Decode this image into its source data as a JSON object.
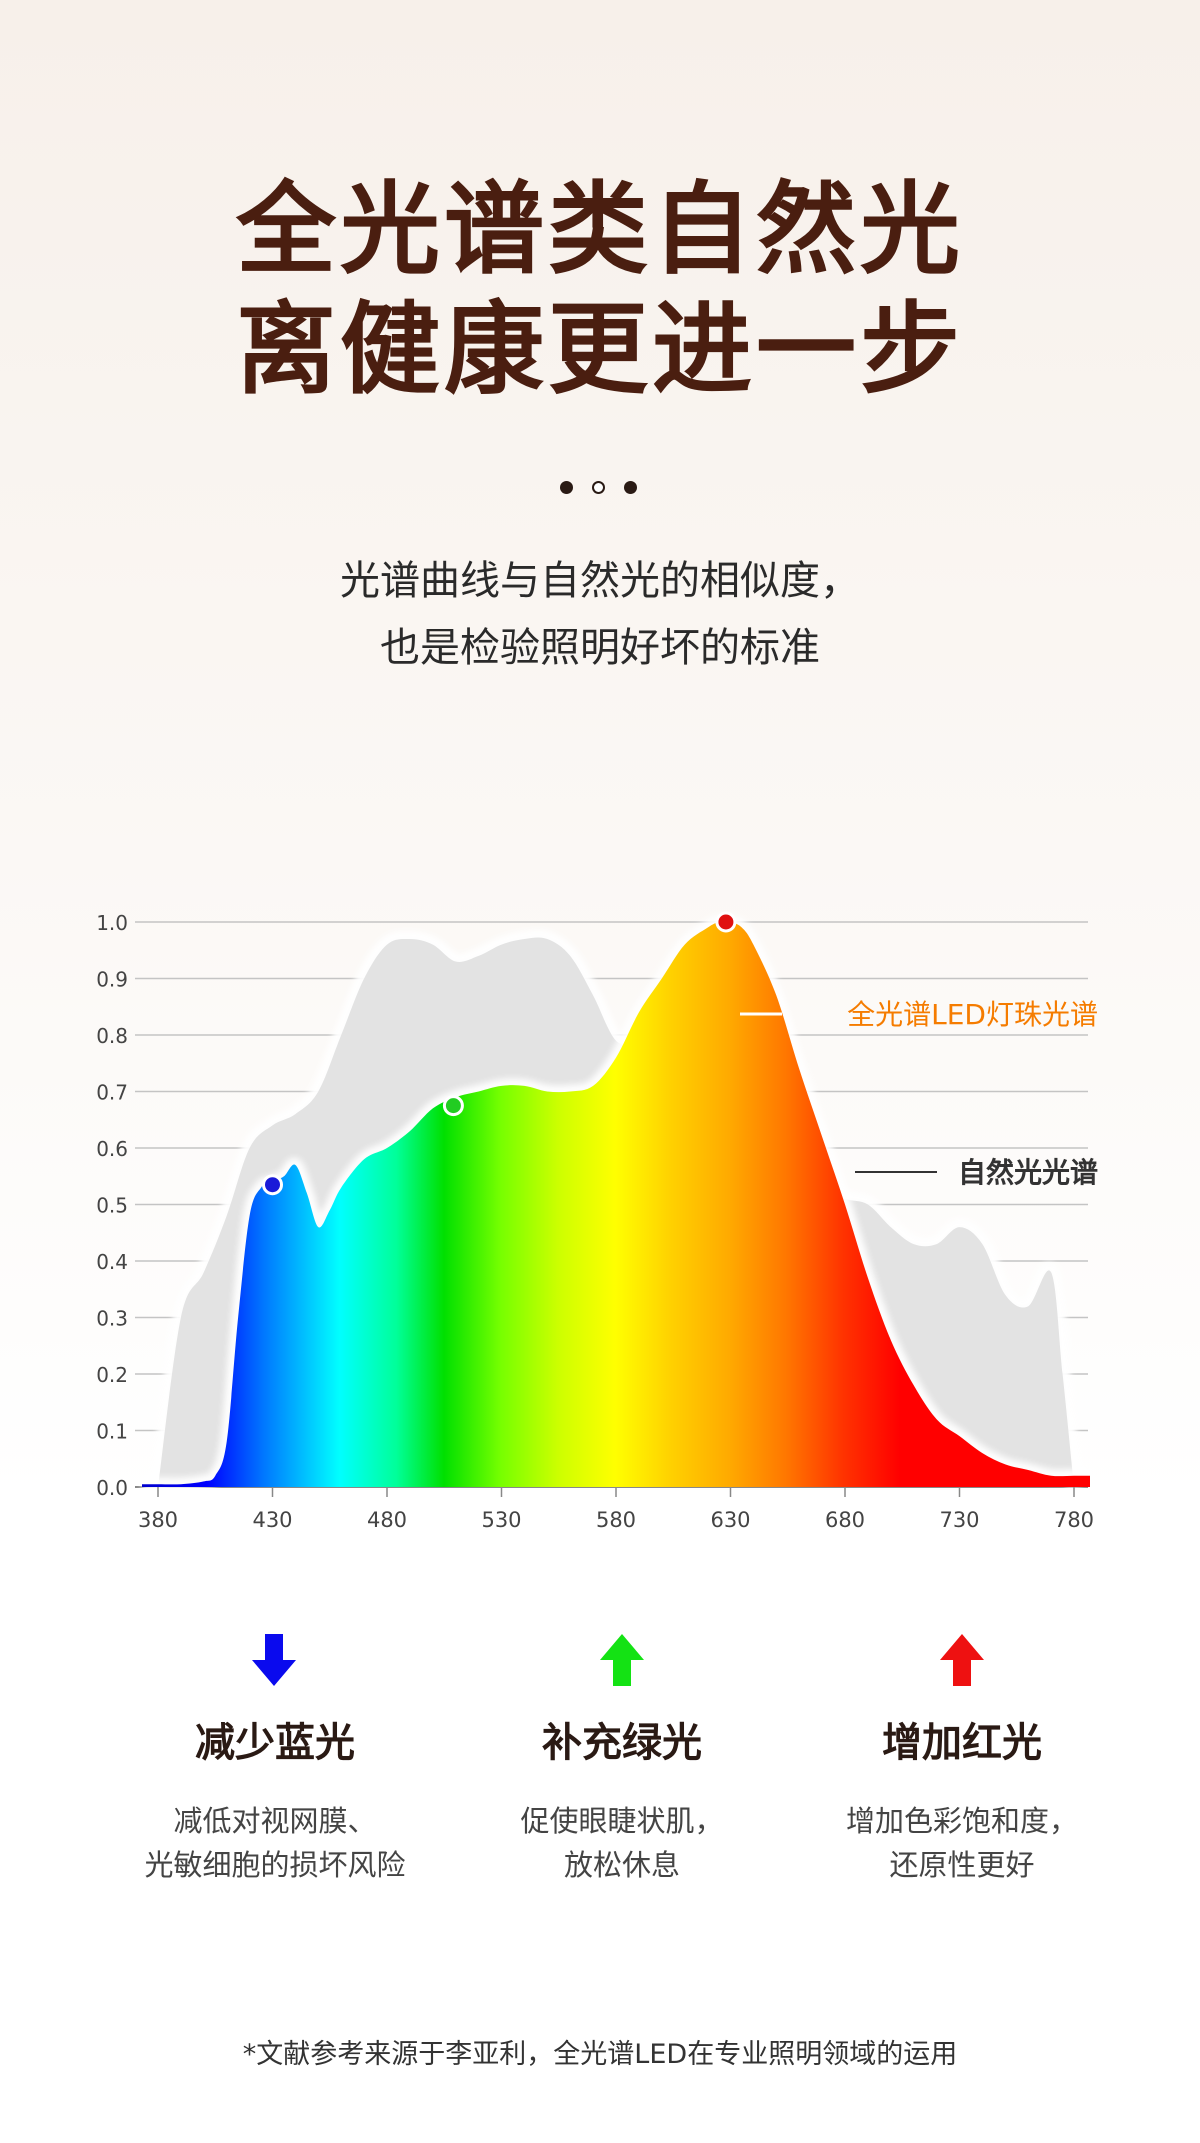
{
  "headline": {
    "line1": "全光谱类自然光",
    "line2": "离健康更进一步"
  },
  "subtitle": {
    "line1": "光谱曲线与自然光的相似度，",
    "line2": "也是检验照明好坏的标准"
  },
  "chart_data": {
    "type": "area",
    "x_ticks": [
      "380",
      "430",
      "480",
      "530",
      "580",
      "630",
      "680",
      "730",
      "780"
    ],
    "y_ticks": [
      "0.0",
      "0.1",
      "0.2",
      "0.3",
      "0.4",
      "0.5",
      "0.6",
      "0.7",
      "0.8",
      "0.9",
      "1.0"
    ],
    "xlim": [
      380,
      780
    ],
    "ylim": [
      0,
      1.0
    ],
    "grid": true,
    "series": [
      {
        "name": "自然光光谱",
        "color": "#e3e3e3",
        "x": [
          380,
          390,
          400,
          410,
          420,
          430,
          440,
          450,
          460,
          470,
          480,
          490,
          500,
          510,
          520,
          530,
          540,
          550,
          560,
          570,
          580,
          590,
          600,
          610,
          620,
          630,
          640,
          650,
          660,
          670,
          680,
          690,
          700,
          710,
          720,
          730,
          740,
          750,
          760,
          770,
          775,
          780
        ],
        "y": [
          0.0,
          0.3,
          0.38,
          0.48,
          0.6,
          0.64,
          0.66,
          0.7,
          0.8,
          0.9,
          0.96,
          0.97,
          0.96,
          0.93,
          0.94,
          0.96,
          0.97,
          0.97,
          0.94,
          0.87,
          0.79,
          0.79,
          0.83,
          0.86,
          0.84,
          0.8,
          0.73,
          0.64,
          0.58,
          0.53,
          0.51,
          0.5,
          0.46,
          0.43,
          0.43,
          0.46,
          0.43,
          0.34,
          0.32,
          0.38,
          0.2,
          0.0
        ]
      },
      {
        "name": "全光谱LED灯珠光谱",
        "x": [
          380,
          390,
          400,
          405,
          410,
          415,
          420,
          425,
          430,
          435,
          440,
          445,
          450,
          455,
          460,
          470,
          480,
          490,
          500,
          510,
          520,
          530,
          540,
          550,
          560,
          570,
          580,
          590,
          600,
          610,
          620,
          625,
          630,
          635,
          640,
          650,
          660,
          670,
          680,
          690,
          700,
          710,
          720,
          730,
          740,
          750,
          760,
          770,
          780
        ],
        "y": [
          0.005,
          0.005,
          0.01,
          0.02,
          0.08,
          0.3,
          0.48,
          0.53,
          0.54,
          0.55,
          0.57,
          0.52,
          0.46,
          0.49,
          0.53,
          0.58,
          0.6,
          0.63,
          0.67,
          0.69,
          0.7,
          0.71,
          0.71,
          0.7,
          0.7,
          0.71,
          0.76,
          0.84,
          0.9,
          0.96,
          0.99,
          1.0,
          1.0,
          0.99,
          0.96,
          0.87,
          0.74,
          0.62,
          0.5,
          0.37,
          0.26,
          0.18,
          0.12,
          0.09,
          0.06,
          0.04,
          0.03,
          0.02,
          0.02
        ]
      }
    ],
    "markers": [
      {
        "x": 430,
        "y": 0.535,
        "color": "#1a1ad8"
      },
      {
        "x": 509,
        "y": 0.675,
        "color": "#22cc22"
      },
      {
        "x": 628,
        "y": 1.0,
        "color": "#e01010"
      }
    ],
    "labels": {
      "led": {
        "text": "全光谱LED灯珠光谱",
        "color": "#f57c00"
      },
      "natural": {
        "text": "自然光光谱",
        "color": "#333333"
      }
    }
  },
  "features": [
    {
      "title": "减少蓝光",
      "desc1": "减低对视网膜、",
      "desc2": "光敏细胞的损坏风险",
      "arrow": "down",
      "color": "#0a0aee",
      "icon": "arrow-down-icon"
    },
    {
      "title": "补充绿光",
      "desc1": "促使眼睫状肌，",
      "desc2": "放松休息",
      "arrow": "up",
      "color": "#14e214",
      "icon": "arrow-up-icon"
    },
    {
      "title": "增加红光",
      "desc1": "增加色彩饱和度，",
      "desc2": "还原性更好",
      "arrow": "up",
      "color": "#ee1111",
      "icon": "arrow-up-icon"
    }
  ],
  "footnote": "*文献参考来源于李亚利，全光谱LED在专业照明领域的运用"
}
